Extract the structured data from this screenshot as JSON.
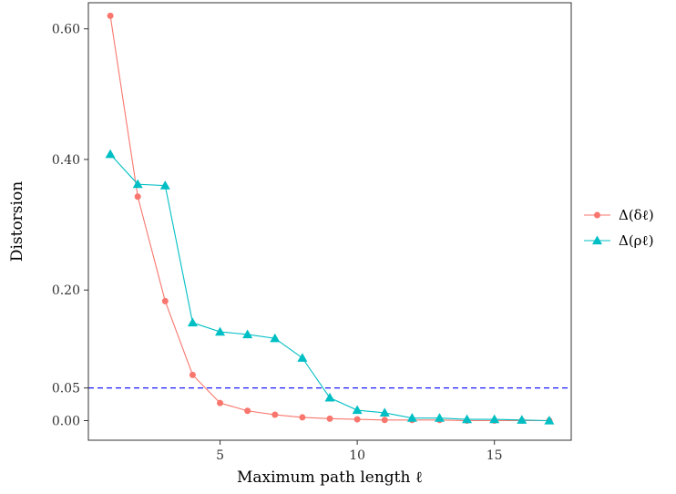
{
  "chart_data": {
    "type": "line",
    "xlabel": "Maximum path length ℓ",
    "ylabel": "Distorsion",
    "xlim": [
      0.2,
      17.8
    ],
    "ylim": [
      -0.03,
      0.64
    ],
    "xticks": [
      5,
      10,
      15
    ],
    "xtick_labels": [
      "5",
      "10",
      "15"
    ],
    "yticks": [
      0.0,
      0.05,
      0.2,
      0.4,
      0.6
    ],
    "ytick_labels": [
      "0.00",
      "0.05",
      "0.20",
      "0.40",
      "0.60"
    ],
    "grid": false,
    "legend_position": "right",
    "reference_lines": [
      {
        "orientation": "horizontal",
        "value": 0.05,
        "style": "dashed",
        "color": "#0000ff"
      }
    ],
    "x": [
      1,
      2,
      3,
      4,
      5,
      6,
      7,
      8,
      9,
      10,
      11,
      12,
      13,
      14,
      15,
      16,
      17
    ],
    "series": [
      {
        "name": "Δ(δℓ)",
        "color": "#F8766D",
        "marker": "circle",
        "values": [
          0.62,
          0.343,
          0.183,
          0.07,
          0.027,
          0.015,
          0.009,
          0.005,
          0.003,
          0.002,
          0.001,
          0.001,
          0.001,
          0.0,
          0.0,
          0.0,
          0.0
        ]
      },
      {
        "name": "Δ(ρℓ)",
        "color": "#00BFC4",
        "marker": "triangle",
        "values": [
          0.408,
          0.362,
          0.36,
          0.15,
          0.136,
          0.132,
          0.126,
          0.096,
          0.035,
          0.016,
          0.012,
          0.004,
          0.004,
          0.002,
          0.002,
          0.001,
          0.0
        ]
      }
    ]
  }
}
